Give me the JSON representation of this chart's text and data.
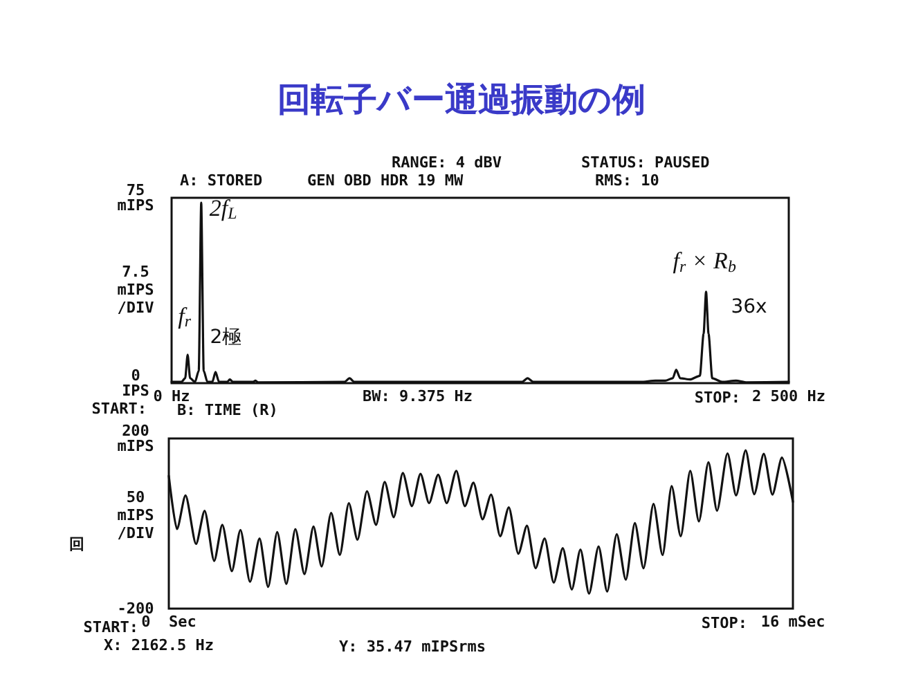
{
  "chart_data": [
    {
      "type": "line",
      "title": "回転子バー通過振動の例",
      "ylabel": "7.5 mIPS /DIV",
      "color": "#111111",
      "marker": "none",
      "line_style": "solid",
      "xlim": [
        0,
        2500
      ],
      "xticks": [
        {
          "value": 0,
          "label": "0 Hz"
        },
        {
          "value": 2500,
          "label": "2 500 Hz"
        }
      ],
      "ylim": [
        0,
        75
      ],
      "yticks": [
        {
          "value": 0,
          "label": "0 IPS"
        },
        {
          "value": 75,
          "label": "75 mIPS"
        }
      ],
      "x": [
        0,
        40,
        55,
        65,
        75,
        95,
        110,
        120,
        130,
        145,
        165,
        178,
        192,
        225,
        236,
        248,
        330,
        340,
        350,
        700,
        721,
        740,
        1420,
        1442,
        1465,
        1900,
        1960,
        2000,
        2030,
        2044,
        2060,
        2100,
        2140,
        2155,
        2165,
        2175,
        2190,
        2230,
        2286,
        2330,
        2500
      ],
      "values": [
        0.5,
        0.5,
        2,
        11.5,
        2,
        0.5,
        5,
        73,
        5,
        0.5,
        0.5,
        4.5,
        0.5,
        0.5,
        1.5,
        0.5,
        0.5,
        1,
        0.3,
        0.5,
        2,
        0.5,
        0.5,
        2,
        0.5,
        0.5,
        1,
        1,
        2,
        5.4,
        2,
        1.5,
        3,
        20,
        37,
        20,
        2,
        0.5,
        1,
        0.3,
        0.5
      ],
      "xlabel": "BW: 9.375 Hz",
      "annotations": [
        "RANGE: 4 dBV",
        "STATUS: PAUSED",
        "A: STORED",
        "GEN OBD HDR 19 MW",
        "RMS: 10",
        "START:",
        "STOP:",
        "B: TIME (R)",
        {
          "text": "f$_{r}$",
          "x": 65,
          "y": 11.5
        },
        {
          "text": "2f$_{L}$",
          "x": 120,
          "y": 73
        },
        {
          "text": "2極",
          "x": 178,
          "y": 4.5
        },
        {
          "text": "f$_{r}$ × R$_{b}$",
          "x": 2165,
          "y": 37
        },
        {
          "text": "36x",
          "x": 2165,
          "y": 37
        }
      ]
    },
    {
      "type": "line",
      "ylabel": "50 mIPS /DIV",
      "color": "#111111",
      "marker": "none",
      "line_style": "solid",
      "xlim": [
        0,
        16
      ],
      "xticks": [
        {
          "value": 0,
          "label": "0  Sec"
        },
        {
          "value": 16,
          "label": "16 mSec"
        }
      ],
      "ylim": [
        -200,
        200
      ],
      "yticks": [
        {
          "value": -200,
          "label": "-200"
        },
        {
          "value": 200,
          "label": "200 mIPS"
        }
      ],
      "x": [
        0,
        0.208,
        0.428,
        0.698,
        0.918,
        1.163,
        1.371,
        1.616,
        1.836,
        2.081,
        2.326,
        2.546,
        2.779,
        3.012,
        3.244,
        3.477,
        3.709,
        3.917,
        4.162,
        4.383,
        4.615,
        4.836,
        5.08,
        5.313,
        5.533,
        5.766,
        5.999,
        6.231,
        6.452,
        6.672,
        6.905,
        7.125,
        7.37,
        7.59,
        7.81,
        8.043,
        8.263,
        8.496,
        8.716,
        8.961,
        9.182,
        9.402,
        9.635,
        9.867,
        10.1,
        10.332,
        10.553,
        10.773,
        11.018,
        11.238,
        11.483,
        11.716,
        11.948,
        12.169,
        12.426,
        12.658,
        12.891,
        13.123,
        13.368,
        13.589,
        13.834,
        14.054,
        14.323,
        14.543,
        14.788,
        15.008,
        15.253,
        15.474,
        15.718,
        16
      ],
      "values": [
        112,
        -13,
        66,
        -48,
        30,
        -88,
        -3,
        -112,
        -15,
        -137,
        -35,
        -149,
        -20,
        -142,
        -13,
        -119,
        -7,
        -101,
        25,
        -74,
        48,
        -38,
        76,
        -3,
        98,
        15,
        119,
        41,
        117,
        48,
        115,
        48,
        124,
        41,
        96,
        10,
        68,
        -30,
        38,
        -71,
        -5,
        -105,
        -35,
        -139,
        -58,
        -155,
        -61,
        -165,
        -54,
        -160,
        -25,
        -132,
        1,
        -105,
        46,
        -74,
        88,
        -30,
        124,
        5,
        144,
        30,
        165,
        66,
        172,
        69,
        164,
        68,
        155,
        51
      ],
      "annotations": [
        "START:",
        "STOP:",
        "X: 2162.5 Hz",
        "Y: 35.47 mIPSrms",
        "回"
      ]
    }
  ]
}
